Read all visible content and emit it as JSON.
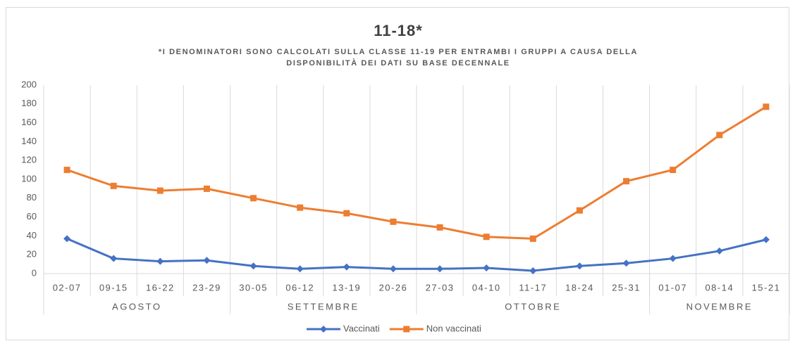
{
  "chart_data": {
    "type": "line",
    "title": "11-18*",
    "subtitle": [
      "*I DENOMINATORI SONO CALCOLATI SULLA CLASSE 11-19 PER ENTRAMBI I GRUPPI A CAUSA DELLA",
      "DISPONIBILITÀ DEI DATI SU BASE DECENNALE"
    ],
    "groups": [
      {
        "label": "AGOSTO",
        "categories": [
          "02-07",
          "09-15",
          "16-22",
          "23-29"
        ]
      },
      {
        "label": "SETTEMBRE",
        "categories": [
          "30-05",
          "06-12",
          "13-19",
          "20-26"
        ]
      },
      {
        "label": "OTTOBRE",
        "categories": [
          "27-03",
          "04-10",
          "11-17",
          "18-24",
          "25-31"
        ]
      },
      {
        "label": "NOVEMBRE",
        "categories": [
          "01-07",
          "08-14",
          "15-21"
        ]
      }
    ],
    "series": [
      {
        "name": "Vaccinati",
        "color": "#4472c4",
        "marker": "diamond",
        "values": [
          37,
          16,
          13,
          14,
          8,
          5,
          7,
          5,
          5,
          6,
          3,
          8,
          11,
          16,
          24,
          36
        ]
      },
      {
        "name": "Non vaccinati",
        "color": "#ed7d31",
        "marker": "square",
        "values": [
          110,
          93,
          88,
          90,
          80,
          70,
          64,
          55,
          49,
          39,
          37,
          67,
          98,
          110,
          147,
          177
        ]
      }
    ],
    "ylim": [
      0,
      200
    ],
    "yticks": [
      0,
      20,
      40,
      60,
      80,
      100,
      120,
      140,
      160,
      180,
      200
    ],
    "legend": "bottom"
  }
}
